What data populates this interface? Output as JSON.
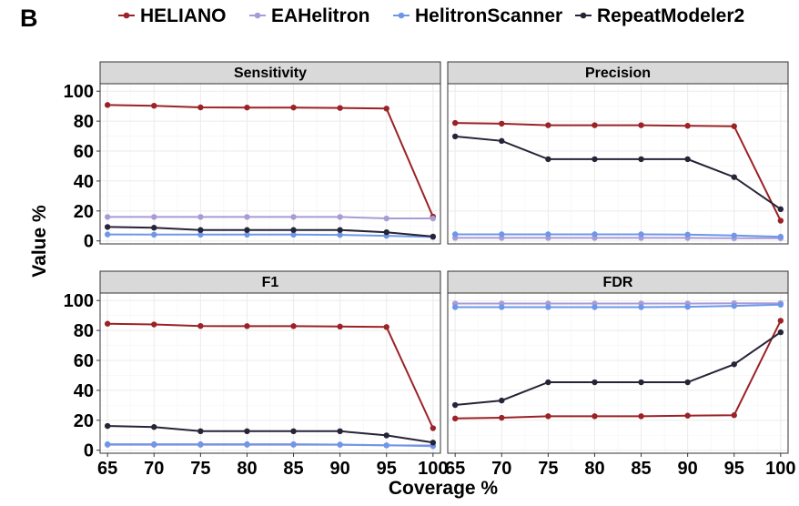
{
  "panel_tag": "B",
  "chart_data": {
    "type": "line",
    "xlabel": "Coverage %",
    "ylabel": "Value %",
    "x": [
      65,
      70,
      75,
      80,
      85,
      90,
      95,
      100
    ],
    "x_tick_labels": [
      "65",
      "70",
      "75",
      "80",
      "85",
      "90",
      "95",
      "100"
    ],
    "ylim": [
      -2,
      105
    ],
    "y_ticks": [
      0,
      20,
      40,
      60,
      80,
      100
    ],
    "y_tick_labels": [
      "0",
      "20",
      "40",
      "60",
      "80",
      "100"
    ],
    "grid": true,
    "legend_position": "top",
    "legend": [
      {
        "name": "HELIANO",
        "color": "#9b2226"
      },
      {
        "name": "EAHelitron",
        "color": "#a99bd6"
      },
      {
        "name": "HelitronScanner",
        "color": "#6f97e8"
      },
      {
        "name": "RepeatModeler2",
        "color": "#262437"
      }
    ],
    "panels": [
      {
        "title": "Sensitivity",
        "series": [
          {
            "name": "HELIANO",
            "values": [
              90.8,
              90.3,
              89.2,
              89.1,
              89.1,
              88.8,
              88.4,
              16.2
            ]
          },
          {
            "name": "EAHelitron",
            "values": [
              16.0,
              16.0,
              16.0,
              16.0,
              16.0,
              16.0,
              15.0,
              15.0
            ]
          },
          {
            "name": "HelitronScanner",
            "values": [
              4.3,
              4.2,
              4.2,
              4.2,
              4.2,
              4.0,
              3.4,
              2.6
            ]
          },
          {
            "name": "RepeatModeler2",
            "values": [
              9.3,
              8.8,
              7.3,
              7.3,
              7.3,
              7.3,
              5.8,
              2.9
            ]
          }
        ]
      },
      {
        "title": "Precision",
        "series": [
          {
            "name": "HELIANO",
            "values": [
              78.8,
              78.3,
              77.3,
              77.3,
              77.3,
              76.9,
              76.6,
              13.5
            ]
          },
          {
            "name": "EAHelitron",
            "values": [
              2.0,
              2.0,
              2.0,
              2.0,
              2.0,
              2.0,
              1.8,
              1.8
            ]
          },
          {
            "name": "HelitronScanner",
            "values": [
              4.4,
              4.4,
              4.4,
              4.4,
              4.4,
              4.2,
              3.6,
              2.8
            ]
          },
          {
            "name": "RepeatModeler2",
            "values": [
              69.8,
              66.8,
              54.6,
              54.6,
              54.6,
              54.6,
              42.6,
              21.2
            ]
          }
        ]
      },
      {
        "title": "F1",
        "series": [
          {
            "name": "HELIANO",
            "values": [
              84.5,
              84.0,
              83.0,
              82.9,
              82.9,
              82.6,
              82.3,
              14.7
            ]
          },
          {
            "name": "EAHelitron",
            "values": [
              3.6,
              3.6,
              3.6,
              3.6,
              3.6,
              3.6,
              3.2,
              3.2
            ]
          },
          {
            "name": "HelitronScanner",
            "values": [
              4.0,
              4.0,
              4.0,
              4.0,
              4.0,
              3.8,
              3.3,
              2.7
            ]
          },
          {
            "name": "RepeatModeler2",
            "values": [
              16.2,
              15.5,
              12.7,
              12.7,
              12.7,
              12.7,
              9.9,
              5.1
            ]
          }
        ]
      },
      {
        "title": "FDR",
        "series": [
          {
            "name": "HELIANO",
            "values": [
              21.2,
              21.7,
              22.7,
              22.7,
              22.7,
              23.1,
              23.4,
              86.5
            ]
          },
          {
            "name": "EAHelitron",
            "values": [
              98.0,
              98.0,
              98.0,
              98.0,
              98.0,
              98.0,
              98.2,
              98.2
            ]
          },
          {
            "name": "HelitronScanner",
            "values": [
              95.6,
              95.6,
              95.6,
              95.6,
              95.6,
              95.8,
              96.4,
              97.2
            ]
          },
          {
            "name": "RepeatModeler2",
            "values": [
              30.2,
              33.2,
              45.4,
              45.4,
              45.4,
              45.4,
              57.4,
              78.8
            ]
          }
        ]
      }
    ]
  }
}
